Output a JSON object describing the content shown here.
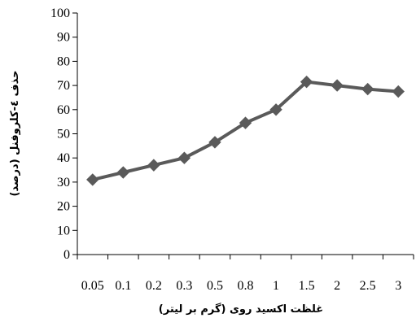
{
  "chart_data": {
    "type": "line",
    "title": "",
    "xlabel": "غلظت اکسید روی (گرم بر لیتر)",
    "ylabel": "حذف ٤-کلروفنل (درصد)",
    "categories": [
      "0.05",
      "0.1",
      "0.2",
      "0.3",
      "0.5",
      "0.8",
      "1",
      "1.5",
      "2",
      "2.5",
      "3"
    ],
    "series": [
      {
        "values": [
          31,
          34,
          37,
          40,
          46.5,
          54.5,
          60,
          71.5,
          70,
          68.5,
          67.5
        ]
      }
    ],
    "ylim": [
      0,
      100
    ],
    "yticks": [
      0,
      10,
      20,
      30,
      40,
      50,
      60,
      70,
      80,
      90,
      100
    ],
    "grid": false,
    "legend": "none",
    "colors": {
      "line": "#5a5a5a",
      "marker": "#5a5a5a",
      "axis": "#000000"
    }
  }
}
